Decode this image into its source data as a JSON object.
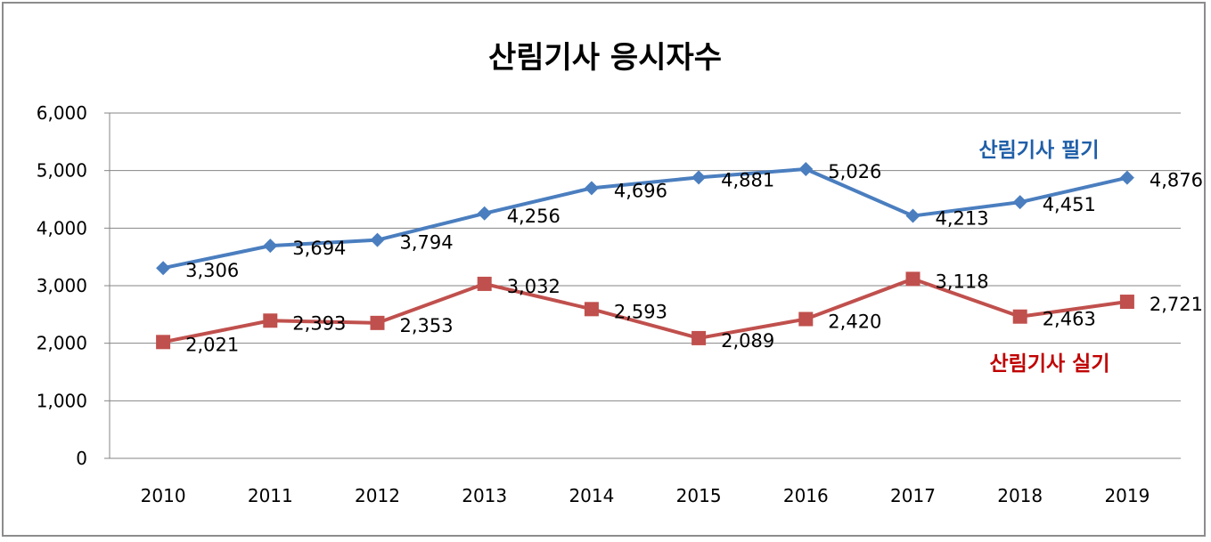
{
  "chart_data": {
    "type": "line",
    "title": "산림기사 응시자수",
    "categories": [
      "2010",
      "2011",
      "2012",
      "2013",
      "2014",
      "2015",
      "2016",
      "2017",
      "2018",
      "2019"
    ],
    "ylim": [
      0,
      6000
    ],
    "yticks": [
      0,
      1000,
      2000,
      3000,
      4000,
      5000,
      6000
    ],
    "ytick_labels": [
      "0",
      "1,000",
      "2,000",
      "3,000",
      "4,000",
      "5,000",
      "6,000"
    ],
    "grid": true,
    "series": [
      {
        "name": "산림기사 필기",
        "color": "#4a7ebf",
        "marker": "diamond",
        "values": [
          3306,
          3694,
          3794,
          4256,
          4696,
          4881,
          5026,
          4213,
          4451,
          4876
        ],
        "labels": [
          "3,306",
          "3,694",
          "3,794",
          "4,256",
          "4,696",
          "4,881",
          "5,026",
          "4,213",
          "4,451",
          "4,876"
        ]
      },
      {
        "name": "산림기사 실기",
        "color": "#c0504d",
        "label_color": "#c00000",
        "marker": "square",
        "values": [
          2021,
          2393,
          2353,
          3032,
          2593,
          2089,
          2420,
          3118,
          2463,
          2721
        ],
        "labels": [
          "2,021",
          "2,393",
          "2,353",
          "3,032",
          "2,593",
          "2,089",
          "2,420",
          "3,118",
          "2,463",
          "2,721"
        ]
      }
    ]
  }
}
